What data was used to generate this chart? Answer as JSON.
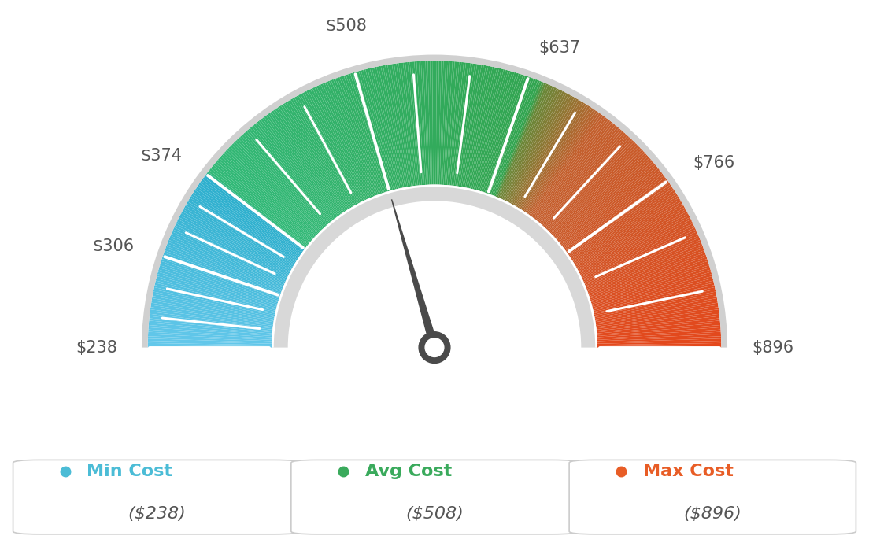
{
  "min_val": 238,
  "max_val": 896,
  "avg_val": 508,
  "needle_value": 508,
  "tick_values": [
    238,
    306,
    374,
    508,
    637,
    766,
    896
  ],
  "tick_labels": [
    "$238",
    "$306",
    "$374",
    "$508",
    "$637",
    "$766",
    "$896"
  ],
  "min_cost_label": "Min Cost",
  "avg_cost_label": "Avg Cost",
  "max_cost_label": "Max Cost",
  "min_cost_color": "#4bbcd6",
  "avg_cost_color": "#3aaa5c",
  "max_cost_color": "#e85d26",
  "min_cost_value": "($238)",
  "avg_cost_value": "($508)",
  "max_cost_value": "($896)",
  "background_color": "#ffffff",
  "text_color": "#555555",
  "color_stops": [
    [
      0.0,
      [
        100,
        200,
        230
      ]
    ],
    [
      0.204,
      [
        60,
        180,
        200
      ]
    ],
    [
      0.208,
      [
        55,
        175,
        180
      ]
    ],
    [
      0.416,
      [
        58,
        185,
        110
      ]
    ],
    [
      0.42,
      [
        80,
        175,
        90
      ]
    ],
    [
      0.62,
      [
        58,
        170,
        80
      ]
    ],
    [
      0.624,
      [
        120,
        140,
        60
      ]
    ],
    [
      0.7,
      [
        200,
        100,
        50
      ]
    ],
    [
      1.0,
      [
        230,
        75,
        30
      ]
    ]
  ]
}
